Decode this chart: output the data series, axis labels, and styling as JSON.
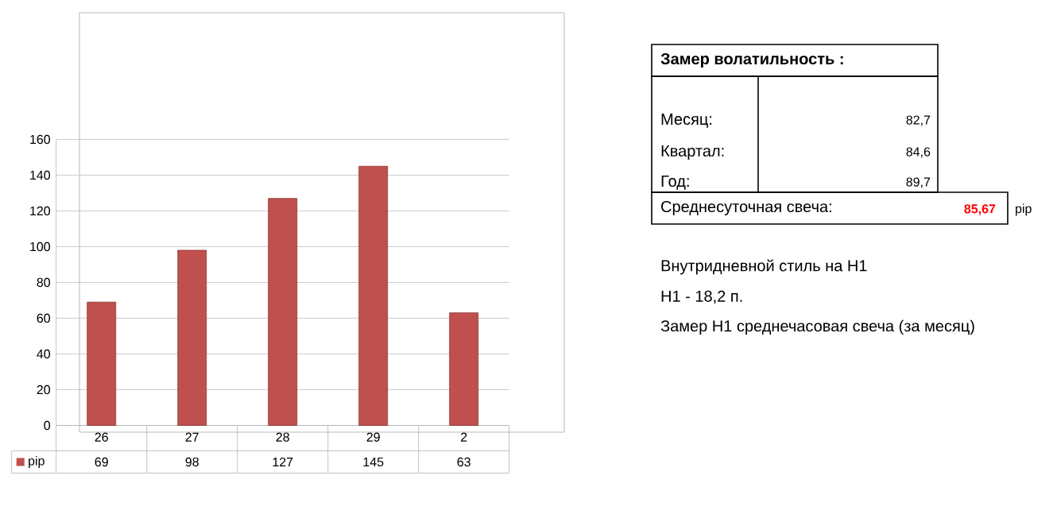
{
  "chart_data": [
    {
      "type": "bar",
      "categories": [
        "26",
        "27",
        "28",
        "29",
        "2"
      ],
      "series": [
        {
          "name": "pip",
          "color": "#c0504d",
          "values": [
            69,
            98,
            127,
            145,
            63
          ]
        }
      ],
      "ylim": [
        0,
        160
      ],
      "yticks": [
        0,
        20,
        40,
        60,
        80,
        100,
        120,
        140,
        160
      ],
      "grid": "y",
      "data_labels": true,
      "legend": "bottom"
    },
    {
      "type": "other",
      "title": "Замер  волатильность  :",
      "annotations": [
        "Месяц:",
        "82,7",
        "Квартал:",
        "84,6",
        "Год:",
        "89,7",
        "Среднесуточная свеча:",
        "85,67",
        "pip",
        "Внутридневной стиль на H1",
        "H1 - 18,2 п.",
        "Замер H1 среднечасовая свеча (за месяц)"
      ]
    }
  ]
}
